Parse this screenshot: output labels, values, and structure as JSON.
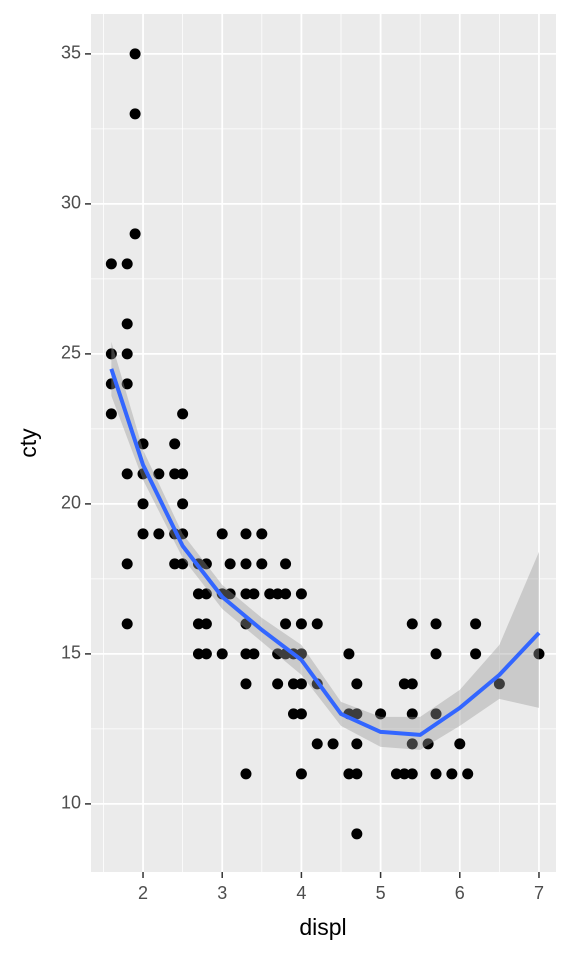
{
  "chart_data": {
    "type": "scatter",
    "x_label": "displ",
    "y_label": "cty",
    "x": [
      1.6,
      1.6,
      1.6,
      1.6,
      1.8,
      1.8,
      1.8,
      1.8,
      1.8,
      1.8,
      1.8,
      1.9,
      1.9,
      1.9,
      2.0,
      2.0,
      2.0,
      2.0,
      2.2,
      2.2,
      2.4,
      2.4,
      2.4,
      2.4,
      2.5,
      2.5,
      2.5,
      2.5,
      2.5,
      2.7,
      2.7,
      2.7,
      2.7,
      2.8,
      2.8,
      2.8,
      2.8,
      3.0,
      3.0,
      3.0,
      3.1,
      3.1,
      3.3,
      3.3,
      3.3,
      3.3,
      3.3,
      3.3,
      3.3,
      3.4,
      3.4,
      3.5,
      3.5,
      3.6,
      3.7,
      3.7,
      3.7,
      3.8,
      3.8,
      3.8,
      3.8,
      3.9,
      3.9,
      3.9,
      4.0,
      4.0,
      4.0,
      4.0,
      4.0,
      4.0,
      4.2,
      4.2,
      4.2,
      4.4,
      4.6,
      4.6,
      4.6,
      4.7,
      4.7,
      4.7,
      4.7,
      4.7,
      5.0,
      5.2,
      5.3,
      5.3,
      5.4,
      5.4,
      5.4,
      5.4,
      5.4,
      5.6,
      5.7,
      5.7,
      5.7,
      5.7,
      5.9,
      6.0,
      6.1,
      6.2,
      6.2,
      6.5,
      7.0
    ],
    "values": [
      28,
      25,
      24,
      23,
      28,
      26,
      25,
      24,
      21,
      18,
      16,
      35,
      33,
      29,
      22,
      21,
      20,
      19,
      21,
      19,
      22,
      21,
      19,
      18,
      23,
      21,
      20,
      19,
      18,
      18,
      17,
      16,
      15,
      18,
      17,
      16,
      15,
      19,
      17,
      15,
      18,
      17,
      19,
      18,
      17,
      16,
      15,
      14,
      11,
      17,
      15,
      19,
      18,
      17,
      17,
      15,
      14,
      18,
      17,
      16,
      15,
      15,
      14,
      13,
      17,
      16,
      15,
      14,
      13,
      11,
      16,
      14,
      12,
      12,
      15,
      13,
      11,
      14,
      13,
      12,
      11,
      9,
      13,
      11,
      14,
      11,
      16,
      14,
      13,
      12,
      11,
      12,
      16,
      15,
      13,
      11,
      11,
      12,
      11,
      16,
      15,
      14,
      15
    ],
    "color": "#000000",
    "smooth": {
      "x": [
        1.6,
        2.0,
        2.5,
        3.0,
        3.5,
        4.0,
        4.5,
        5.0,
        5.5,
        6.0,
        6.5,
        7.0
      ],
      "values": [
        24.5,
        21.3,
        18.6,
        16.9,
        15.8,
        14.8,
        13.0,
        12.4,
        12.3,
        13.2,
        14.3,
        15.7
      ],
      "lower": [
        23.6,
        20.8,
        18.2,
        16.5,
        15.4,
        14.3,
        12.6,
        11.9,
        11.8,
        12.6,
        13.5,
        13.2
      ],
      "upper": [
        25.4,
        21.8,
        19.0,
        17.3,
        16.2,
        15.3,
        13.4,
        12.9,
        12.9,
        13.8,
        15.3,
        18.4
      ],
      "color": "#3366ff",
      "band_color": "#999999"
    },
    "xlim": [
      1.343,
      7.215
    ],
    "ylim": [
      7.73,
      36.33
    ],
    "xticks": [
      2,
      3,
      4,
      5,
      6,
      7
    ],
    "yticks": [
      10,
      15,
      20,
      25,
      30,
      35
    ],
    "xminor": [
      1.5,
      2.5,
      3.5,
      4.5,
      5.5,
      6.5
    ],
    "yminor": [
      12.5,
      17.5,
      22.5,
      27.5,
      32.5
    ],
    "grid": true,
    "panel_color": "#ebebeb"
  }
}
